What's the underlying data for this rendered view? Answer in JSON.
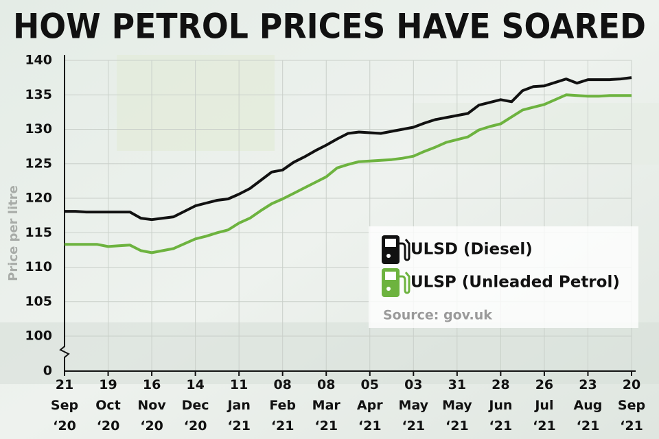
{
  "chart_data": {
    "type": "line",
    "title": "HOW PETROL PRICES HAVE SOARED",
    "y_label": "Price per litre",
    "source": "Source: gov.uk",
    "categories": [
      [
        "21",
        "Sep",
        "‘20"
      ],
      null,
      null,
      null,
      [
        "19",
        "Oct",
        "‘20"
      ],
      null,
      null,
      null,
      [
        "16",
        "Nov",
        "‘20"
      ],
      null,
      null,
      null,
      [
        "14",
        "Dec",
        "‘20"
      ],
      null,
      null,
      null,
      [
        "11",
        "Jan",
        "‘21"
      ],
      null,
      null,
      null,
      [
        "08",
        "Feb",
        "‘21"
      ],
      null,
      null,
      null,
      [
        "08",
        "Mar",
        "‘21"
      ],
      null,
      null,
      null,
      [
        "05",
        "Apr",
        "‘21"
      ],
      null,
      null,
      null,
      [
        "03",
        "May",
        "‘21"
      ],
      null,
      null,
      null,
      [
        "31",
        "May",
        "‘21"
      ],
      null,
      null,
      null,
      [
        "28",
        "Jun",
        "‘21"
      ],
      null,
      null,
      null,
      [
        "26",
        "Jul",
        "‘21"
      ],
      null,
      null,
      null,
      [
        "23",
        "Aug",
        "‘21"
      ],
      null,
      null,
      null,
      [
        "20",
        "Sep",
        "‘21"
      ]
    ],
    "series": [
      {
        "name": "ULSD (Diesel)",
        "color": "#111111",
        "values": [
          118.1,
          118.1,
          118.0,
          118.0,
          118.0,
          118.0,
          118.0,
          117.1,
          116.9,
          117.1,
          117.3,
          118.1,
          118.9,
          119.3,
          119.7,
          119.9,
          120.6,
          121.4,
          122.6,
          123.8,
          124.1,
          125.2,
          126.0,
          126.9,
          127.7,
          128.6,
          129.4,
          129.6,
          129.5,
          129.4,
          129.7,
          130.0,
          130.3,
          130.9,
          131.4,
          131.7,
          132.0,
          132.3,
          133.5,
          133.9,
          134.3,
          134.0,
          135.6,
          136.2,
          136.3,
          136.8,
          137.3,
          136.7,
          137.2,
          137.2,
          137.2,
          137.3,
          137.5
        ]
      },
      {
        "name": "ULSP (Unleaded Petrol)",
        "color": "#6db33f",
        "values": [
          113.3,
          113.3,
          113.3,
          113.3,
          113.0,
          113.1,
          113.2,
          112.4,
          112.1,
          112.4,
          112.7,
          113.4,
          114.1,
          114.5,
          115.0,
          115.4,
          116.4,
          117.1,
          118.2,
          119.2,
          119.9,
          120.7,
          121.5,
          122.3,
          123.1,
          124.4,
          124.9,
          125.3,
          125.4,
          125.5,
          125.6,
          125.8,
          126.1,
          126.8,
          127.4,
          128.1,
          128.5,
          128.9,
          129.9,
          130.4,
          130.8,
          131.8,
          132.8,
          133.2,
          133.6,
          134.3,
          135.0,
          134.9,
          134.8,
          134.8,
          134.9,
          134.9,
          134.9
        ]
      }
    ],
    "ylim": [
      100,
      140
    ],
    "yticks": [
      100,
      105,
      110,
      115,
      120,
      125,
      130,
      135,
      140
    ],
    "y_break_tick": 0,
    "grid": true
  }
}
